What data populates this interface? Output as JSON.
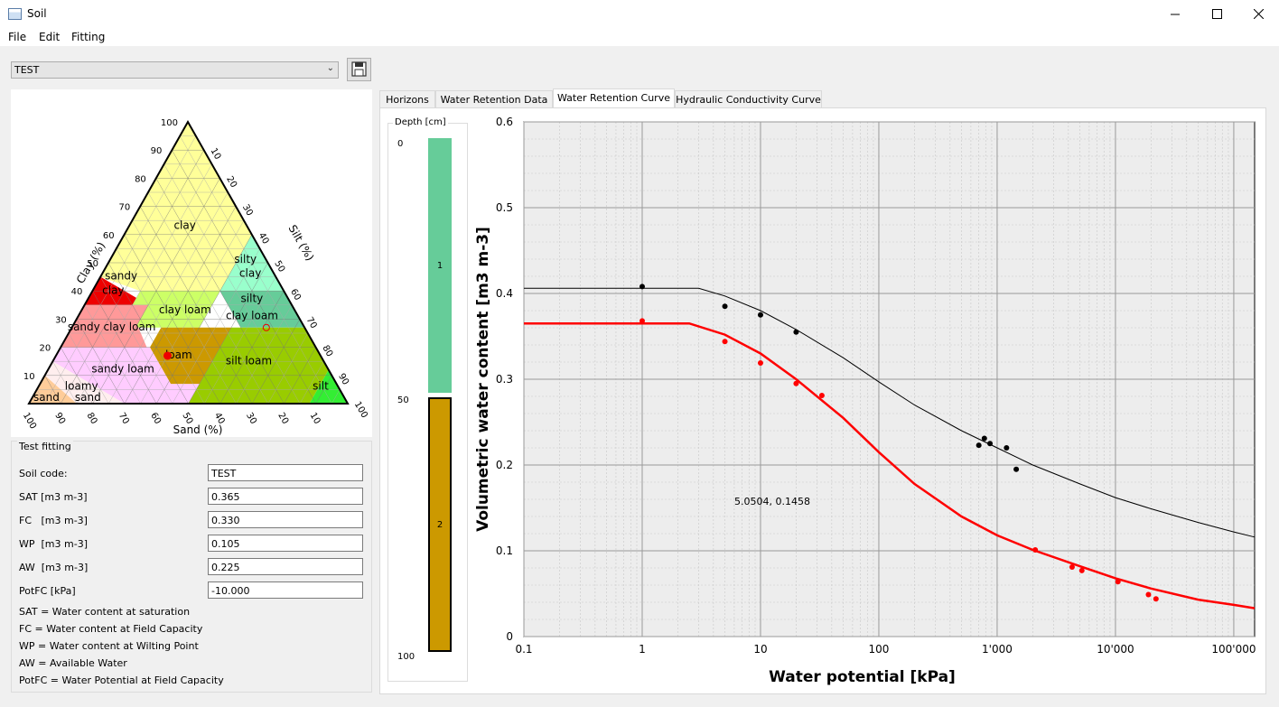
{
  "window": {
    "title": "Soil"
  },
  "menu": [
    "File",
    "Edit",
    "Fitting"
  ],
  "soil_selector": {
    "value": "TEST"
  },
  "triangle": {
    "clay_axis_label": "Clay (%)",
    "silt_axis_label": "Silt (%)",
    "sand_axis_label": "Sand (%)",
    "clay_ticks": [
      "100",
      "90",
      "80",
      "70",
      "60",
      "50",
      "40",
      "30",
      "20",
      "10"
    ],
    "silt_ticks": [
      "10",
      "20",
      "30",
      "40",
      "50",
      "60",
      "70",
      "80",
      "90",
      "100"
    ],
    "sand_ticks": [
      "100",
      "90",
      "80",
      "70",
      "60",
      "50",
      "40",
      "30",
      "20",
      "10"
    ],
    "classes": {
      "clay": "clay",
      "silty_clay_1": "silty",
      "silty_clay_2": "clay",
      "sandy_clay_1": "sandy",
      "sandy_clay_2": "clay",
      "silty_clay_loam_1": "silty",
      "silty_clay_loam_2": "clay loam",
      "clay_loam": "clay loam",
      "sandy_clay_loam": "sandy clay loam",
      "loam": "loam",
      "silt_loam": "silt loam",
      "sandy_loam": "sandy loam",
      "loamy_sand_1": "loamy",
      "loamy_sand_2": "sand",
      "sand": "sand",
      "silt": "silt"
    }
  },
  "fitting": {
    "group_title": "Test fitting",
    "fields": [
      {
        "label": "Soil code:",
        "value": "TEST"
      },
      {
        "label": "SAT [m3 m-3]",
        "value": "0.365"
      },
      {
        "label": "FC   [m3 m-3]",
        "value": "0.330"
      },
      {
        "label": "WP  [m3 m-3]",
        "value": "0.105"
      },
      {
        "label": "AW  [m3 m-3]",
        "value": "0.225"
      },
      {
        "label": "PotFC [kPa]",
        "value": "-10.000"
      }
    ],
    "legend": [
      "SAT = Water content at saturation",
      "FC = Water content at Field Capacity",
      "WP = Water content at Wilting Point",
      "AW = Available Water",
      "PotFC = Water Potential at Field Capacity"
    ]
  },
  "tabs": [
    "Horizons",
    "Water Retention Data",
    "Water Retention Curve",
    "Hydraulic Conductivity Curve"
  ],
  "active_tab": "Water Retention Curve",
  "depth": {
    "title": "Depth [cm]",
    "ticks": [
      "0",
      "50",
      "100"
    ],
    "horizons": [
      {
        "label": "1",
        "top": 0,
        "bottom": 50,
        "color": "#66cc99"
      },
      {
        "label": "2",
        "top": 50,
        "bottom": 100,
        "color": "#cc9900"
      }
    ]
  },
  "chart_data": {
    "type": "scatter",
    "xlabel": "Water potential [kPa]",
    "ylabel": "Volumetric water content [m3 m-3]",
    "x_scale": "log",
    "xlim": [
      0.1,
      150000
    ],
    "ylim": [
      0,
      0.6
    ],
    "x_tick_labels": [
      "0.1",
      "1",
      "10",
      "100",
      "1'000",
      "10'000",
      "100'000"
    ],
    "y_tick_labels": [
      "0",
      "0.1",
      "0.2",
      "0.3",
      "0.4",
      "0.5",
      "0.6"
    ],
    "grid": true,
    "annotation": "5.0504, 0.1458",
    "series": [
      {
        "color": "#000000",
        "points": [
          [
            1,
            0.408
          ],
          [
            5,
            0.385
          ],
          [
            10,
            0.375
          ],
          [
            20,
            0.355
          ],
          [
            700,
            0.223
          ],
          [
            780,
            0.231
          ],
          [
            870,
            0.225
          ],
          [
            1200,
            0.22
          ],
          [
            1450,
            0.195
          ]
        ],
        "curve": [
          [
            0.1,
            0.406
          ],
          [
            3,
            0.406
          ],
          [
            5,
            0.397
          ],
          [
            10,
            0.38
          ],
          [
            20,
            0.358
          ],
          [
            50,
            0.325
          ],
          [
            100,
            0.297
          ],
          [
            200,
            0.27
          ],
          [
            500,
            0.24
          ],
          [
            1000,
            0.22
          ],
          [
            2000,
            0.2
          ],
          [
            5000,
            0.178
          ],
          [
            10000,
            0.162
          ],
          [
            20000,
            0.149
          ],
          [
            50000,
            0.133
          ],
          [
            100000,
            0.122
          ],
          [
            150000,
            0.116
          ]
        ]
      },
      {
        "color": "#ff0000",
        "points": [
          [
            1,
            0.368
          ],
          [
            5,
            0.344
          ],
          [
            10,
            0.319
          ],
          [
            20,
            0.295
          ],
          [
            33,
            0.281
          ],
          [
            2100,
            0.101
          ],
          [
            4300,
            0.081
          ],
          [
            5200,
            0.077
          ],
          [
            10500,
            0.064
          ],
          [
            19000,
            0.049
          ],
          [
            22000,
            0.044
          ]
        ],
        "curve": [
          [
            0.1,
            0.365
          ],
          [
            2.5,
            0.365
          ],
          [
            5,
            0.352
          ],
          [
            10,
            0.33
          ],
          [
            20,
            0.3
          ],
          [
            50,
            0.255
          ],
          [
            100,
            0.215
          ],
          [
            200,
            0.178
          ],
          [
            500,
            0.14
          ],
          [
            1000,
            0.118
          ],
          [
            2000,
            0.101
          ],
          [
            5000,
            0.082
          ],
          [
            10000,
            0.068
          ],
          [
            20000,
            0.056
          ],
          [
            50000,
            0.043
          ],
          [
            100000,
            0.037
          ],
          [
            150000,
            0.033
          ]
        ]
      }
    ]
  }
}
